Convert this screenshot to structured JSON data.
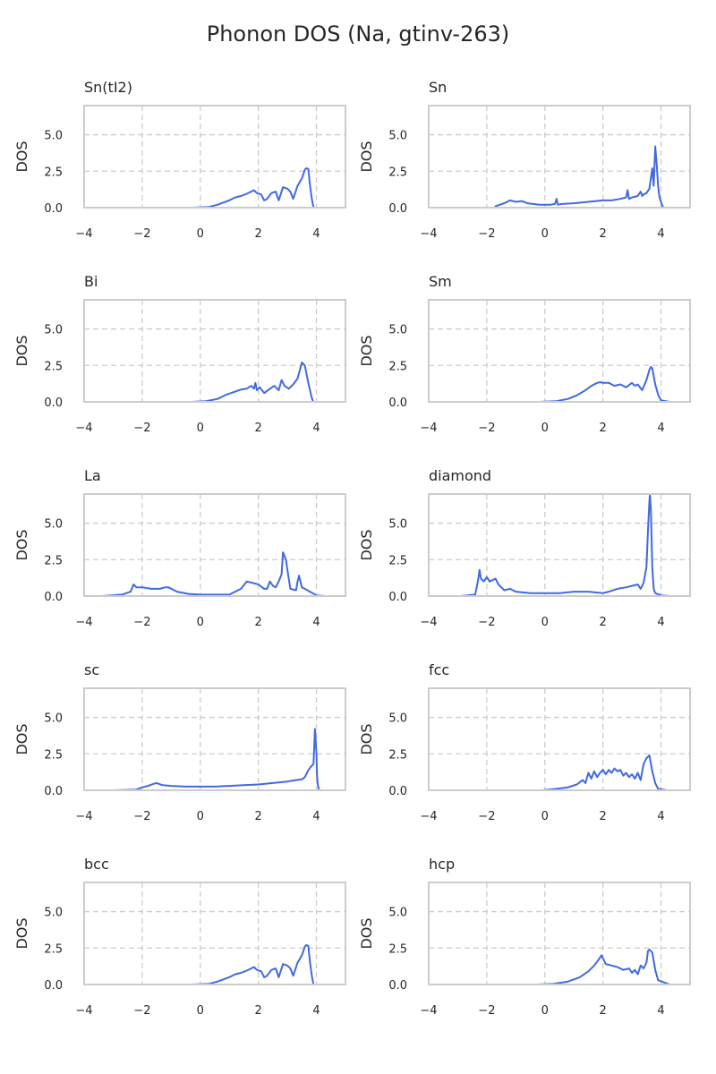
{
  "figure": {
    "title": "Phonon DOS (Na, gtinv-263)"
  },
  "style": {
    "line_color": "#4169e1",
    "grid_color": "#cccccc",
    "frame_color": "#cccccc"
  },
  "chart_data": [
    {
      "type": "line",
      "title": "Sn(tI2)",
      "xlabel": "",
      "ylabel": "DOS",
      "xlim": [
        -4,
        5
      ],
      "ylim": [
        0,
        7
      ],
      "xticks": [
        "−4",
        "−2",
        "0",
        "2",
        "4"
      ],
      "yticks": [
        "0.0",
        "2.5",
        "5.0"
      ],
      "grid": true,
      "x": [
        -0.3,
        0.3,
        0.6,
        1.0,
        1.2,
        1.4,
        1.6,
        1.75,
        1.85,
        1.95,
        2.1,
        2.2,
        2.3,
        2.45,
        2.6,
        2.7,
        2.85,
        3.0,
        3.1,
        3.2,
        3.35,
        3.5,
        3.6,
        3.65,
        3.72,
        3.78,
        3.85,
        3.9,
        4.3
      ],
      "y": [
        0,
        0.05,
        0.2,
        0.5,
        0.7,
        0.8,
        0.95,
        1.1,
        1.2,
        1.0,
        0.9,
        0.5,
        0.6,
        1.0,
        1.1,
        0.5,
        1.4,
        1.3,
        1.1,
        0.6,
        1.5,
        2.0,
        2.6,
        2.7,
        2.65,
        1.5,
        0.5,
        0,
        0
      ]
    },
    {
      "type": "line",
      "title": "Sn",
      "xlabel": "",
      "ylabel": "DOS",
      "xlim": [
        -4,
        5
      ],
      "ylim": [
        0,
        7
      ],
      "xticks": [
        "−4",
        "−2",
        "0",
        "2",
        "4"
      ],
      "yticks": [
        "0.0",
        "2.5",
        "5.0"
      ],
      "grid": true,
      "x": [
        -1.7,
        -1.4,
        -1.2,
        -1.0,
        -0.8,
        -0.6,
        -0.4,
        -0.2,
        0.0,
        0.2,
        0.35,
        0.4,
        0.45,
        0.6,
        1.0,
        1.5,
        2.0,
        2.3,
        2.6,
        2.8,
        2.85,
        2.9,
        3.0,
        3.2,
        3.3,
        3.35,
        3.4,
        3.5,
        3.6,
        3.7,
        3.75,
        3.8,
        3.85,
        3.9,
        3.95,
        4.05,
        4.1,
        4.5
      ],
      "y": [
        0.1,
        0.3,
        0.5,
        0.4,
        0.45,
        0.3,
        0.25,
        0.2,
        0.2,
        0.2,
        0.25,
        0.6,
        0.2,
        0.25,
        0.3,
        0.4,
        0.5,
        0.5,
        0.6,
        0.7,
        1.2,
        0.6,
        0.7,
        0.8,
        1.1,
        0.8,
        0.9,
        1.0,
        1.3,
        2.7,
        1.5,
        4.2,
        3.0,
        1.5,
        0.7,
        0.1,
        0,
        0
      ]
    },
    {
      "type": "line",
      "title": "Bi",
      "xlabel": "",
      "ylabel": "DOS",
      "xlim": [
        -4,
        5
      ],
      "ylim": [
        0,
        7
      ],
      "xticks": [
        "−4",
        "−2",
        "0",
        "2",
        "4"
      ],
      "yticks": [
        "0.0",
        "2.5",
        "5.0"
      ],
      "grid": true,
      "x": [
        -0.3,
        0.2,
        0.6,
        0.9,
        1.2,
        1.4,
        1.6,
        1.75,
        1.85,
        1.9,
        1.95,
        2.05,
        2.2,
        2.4,
        2.55,
        2.7,
        2.8,
        2.9,
        3.05,
        3.2,
        3.35,
        3.5,
        3.55,
        3.6,
        3.7,
        3.8,
        3.85,
        3.9,
        4.2
      ],
      "y": [
        0,
        0.05,
        0.2,
        0.5,
        0.7,
        0.85,
        0.9,
        1.1,
        0.9,
        1.3,
        0.8,
        1.0,
        0.6,
        0.9,
        1.1,
        0.8,
        1.5,
        1.1,
        0.9,
        1.2,
        1.6,
        2.7,
        2.6,
        2.5,
        1.5,
        0.6,
        0.2,
        0,
        0
      ]
    },
    {
      "type": "line",
      "title": "Sm",
      "xlabel": "",
      "ylabel": "DOS",
      "xlim": [
        -4,
        5
      ],
      "ylim": [
        0,
        7
      ],
      "xticks": [
        "−4",
        "−2",
        "0",
        "2",
        "4"
      ],
      "yticks": [
        "0.0",
        "2.5",
        "5.0"
      ],
      "grid": true,
      "x": [
        -0.2,
        0.4,
        0.8,
        1.1,
        1.4,
        1.6,
        1.8,
        1.9,
        2.0,
        2.2,
        2.4,
        2.6,
        2.8,
        3.0,
        3.1,
        3.2,
        3.35,
        3.5,
        3.6,
        3.65,
        3.7,
        3.8,
        3.9,
        4.0,
        4.3
      ],
      "y": [
        0,
        0.05,
        0.2,
        0.45,
        0.8,
        1.1,
        1.3,
        1.35,
        1.3,
        1.3,
        1.1,
        1.2,
        1.0,
        1.3,
        1.1,
        1.2,
        0.8,
        1.5,
        2.2,
        2.4,
        2.3,
        1.2,
        0.5,
        0.1,
        0
      ]
    },
    {
      "type": "line",
      "title": "La",
      "xlabel": "",
      "ylabel": "DOS",
      "xlim": [
        -4,
        5
      ],
      "ylim": [
        0,
        7
      ],
      "xticks": [
        "−4",
        "−2",
        "0",
        "2",
        "4"
      ],
      "yticks": [
        "0.0",
        "2.5",
        "5.0"
      ],
      "grid": true,
      "x": [
        -3.4,
        -2.7,
        -2.4,
        -2.3,
        -2.2,
        -2.0,
        -1.7,
        -1.4,
        -1.2,
        -1.1,
        -0.8,
        -0.4,
        0,
        0.5,
        1.0,
        1.2,
        1.4,
        1.6,
        1.8,
        2.0,
        2.2,
        2.3,
        2.4,
        2.5,
        2.6,
        2.7,
        2.8,
        2.85,
        2.95,
        3.0,
        3.1,
        3.3,
        3.35,
        3.4,
        3.5,
        3.6,
        4.0,
        4.3
      ],
      "y": [
        0,
        0.1,
        0.3,
        0.8,
        0.6,
        0.6,
        0.5,
        0.5,
        0.6,
        0.6,
        0.3,
        0.15,
        0.1,
        0.1,
        0.1,
        0.3,
        0.5,
        1.0,
        0.9,
        0.8,
        0.5,
        0.5,
        1.0,
        0.7,
        0.6,
        1.0,
        1.5,
        3.0,
        2.5,
        1.8,
        0.5,
        0.4,
        1.0,
        1.4,
        0.6,
        0.5,
        0.05,
        0
      ]
    },
    {
      "type": "line",
      "title": "diamond",
      "xlabel": "",
      "ylabel": "DOS",
      "xlim": [
        -4,
        5
      ],
      "ylim": [
        0,
        7
      ],
      "xticks": [
        "−4",
        "−2",
        "0",
        "2",
        "4"
      ],
      "yticks": [
        "0.0",
        "2.5",
        "5.0"
      ],
      "grid": true,
      "x": [
        -2.9,
        -2.4,
        -2.3,
        -2.25,
        -2.2,
        -2.1,
        -2.0,
        -1.9,
        -1.8,
        -1.7,
        -1.6,
        -1.5,
        -1.4,
        -1.2,
        -1.0,
        -0.5,
        0,
        0.5,
        1.0,
        1.5,
        2.0,
        2.2,
        2.5,
        2.8,
        3.0,
        3.2,
        3.3,
        3.4,
        3.5,
        3.55,
        3.6,
        3.62,
        3.65,
        3.7,
        3.75,
        3.8,
        4.0,
        4.3
      ],
      "y": [
        0,
        0.1,
        1.1,
        1.8,
        1.2,
        1.0,
        1.3,
        1.0,
        1.1,
        1.2,
        0.8,
        0.6,
        0.4,
        0.5,
        0.3,
        0.2,
        0.2,
        0.2,
        0.3,
        0.3,
        0.2,
        0.3,
        0.5,
        0.6,
        0.7,
        0.8,
        0.5,
        0.9,
        2.0,
        4.5,
        6.5,
        7.0,
        6.0,
        2.0,
        0.5,
        0.2,
        0.05,
        0
      ]
    },
    {
      "type": "line",
      "title": "sc",
      "xlabel": "",
      "ylabel": "DOS",
      "xlim": [
        -4,
        5
      ],
      "ylim": [
        0,
        7
      ],
      "xticks": [
        "−4",
        "−2",
        "0",
        "2",
        "4"
      ],
      "yticks": [
        "0.0",
        "2.5",
        "5.0"
      ],
      "grid": true,
      "x": [
        -3.0,
        -2.2,
        -2.0,
        -1.8,
        -1.6,
        -1.5,
        -1.3,
        -1.0,
        -0.5,
        0,
        0.5,
        1.0,
        1.5,
        2.0,
        2.5,
        3.0,
        3.3,
        3.5,
        3.6,
        3.7,
        3.8,
        3.9,
        3.95,
        4.0,
        4.02,
        4.05,
        4.1,
        4.4
      ],
      "y": [
        0,
        0.05,
        0.2,
        0.3,
        0.45,
        0.5,
        0.35,
        0.3,
        0.25,
        0.25,
        0.25,
        0.3,
        0.35,
        0.4,
        0.5,
        0.6,
        0.7,
        0.75,
        0.9,
        1.3,
        1.6,
        1.8,
        4.2,
        2.5,
        1.0,
        0.3,
        0,
        0
      ]
    },
    {
      "type": "line",
      "title": "fcc",
      "xlabel": "",
      "ylabel": "DOS",
      "xlim": [
        -4,
        5
      ],
      "ylim": [
        0,
        7
      ],
      "xticks": [
        "−4",
        "−2",
        "0",
        "2",
        "4"
      ],
      "yticks": [
        "0.0",
        "2.5",
        "5.0"
      ],
      "grid": true,
      "x": [
        -0.1,
        0.4,
        0.8,
        1.1,
        1.3,
        1.4,
        1.5,
        1.6,
        1.7,
        1.8,
        1.9,
        2.0,
        2.1,
        2.2,
        2.3,
        2.4,
        2.5,
        2.6,
        2.7,
        2.8,
        2.9,
        3.0,
        3.1,
        3.2,
        3.3,
        3.4,
        3.5,
        3.6,
        3.7,
        3.8,
        3.9,
        4.2
      ],
      "y": [
        0,
        0.1,
        0.2,
        0.4,
        0.7,
        0.5,
        1.2,
        0.8,
        1.3,
        0.9,
        1.2,
        1.4,
        1.1,
        1.4,
        1.2,
        1.5,
        1.3,
        1.4,
        1.0,
        1.2,
        0.9,
        1.1,
        0.8,
        1.2,
        0.7,
        1.8,
        2.2,
        2.4,
        1.3,
        0.5,
        0.1,
        0
      ]
    },
    {
      "type": "line",
      "title": "bcc",
      "xlabel": "",
      "ylabel": "DOS",
      "xlim": [
        -4,
        5
      ],
      "ylim": [
        0,
        7
      ],
      "xticks": [
        "−4",
        "−2",
        "0",
        "2",
        "4"
      ],
      "yticks": [
        "0.0",
        "2.5",
        "5.0"
      ],
      "grid": true,
      "x": [
        -0.3,
        0.3,
        0.6,
        1.0,
        1.2,
        1.4,
        1.6,
        1.75,
        1.85,
        1.95,
        2.1,
        2.2,
        2.3,
        2.45,
        2.6,
        2.7,
        2.85,
        3.0,
        3.1,
        3.2,
        3.35,
        3.5,
        3.6,
        3.65,
        3.72,
        3.78,
        3.85,
        3.9,
        4.3
      ],
      "y": [
        0,
        0.05,
        0.2,
        0.5,
        0.7,
        0.8,
        0.95,
        1.1,
        1.2,
        1.0,
        0.9,
        0.5,
        0.6,
        1.0,
        1.1,
        0.5,
        1.4,
        1.3,
        1.1,
        0.6,
        1.5,
        2.0,
        2.6,
        2.7,
        2.65,
        1.5,
        0.5,
        0,
        0
      ]
    },
    {
      "type": "line",
      "title": "hcp",
      "xlabel": "",
      "ylabel": "DOS",
      "xlim": [
        -4,
        5
      ],
      "ylim": [
        0,
        7
      ],
      "xticks": [
        "−4",
        "−2",
        "0",
        "2",
        "4"
      ],
      "yticks": [
        "0.0",
        "2.5",
        "5.0"
      ],
      "grid": true,
      "x": [
        -0.3,
        0.3,
        0.8,
        1.2,
        1.5,
        1.7,
        1.85,
        1.95,
        2.0,
        2.1,
        2.3,
        2.5,
        2.7,
        2.9,
        3.0,
        3.1,
        3.2,
        3.3,
        3.4,
        3.5,
        3.55,
        3.6,
        3.7,
        3.8,
        3.9,
        4.3
      ],
      "y": [
        0,
        0.05,
        0.2,
        0.5,
        0.9,
        1.3,
        1.7,
        2.0,
        1.8,
        1.4,
        1.3,
        1.2,
        1.0,
        1.1,
        0.8,
        1.0,
        0.7,
        1.3,
        1.1,
        1.5,
        2.3,
        2.4,
        2.2,
        1.0,
        0.3,
        0
      ]
    }
  ]
}
